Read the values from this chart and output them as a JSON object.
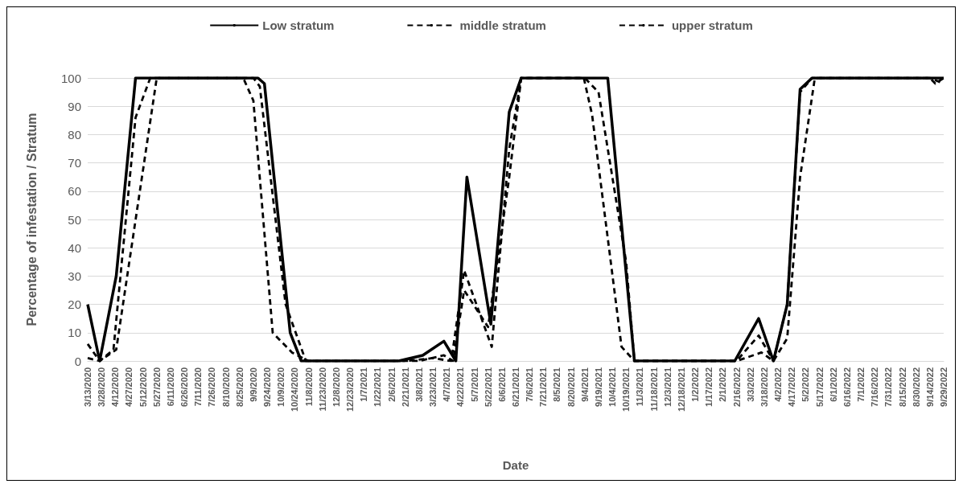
{
  "chart_data": {
    "type": "line",
    "xlabel": "Date",
    "ylabel": "Percentage of infestation / Stratum",
    "legend": "top",
    "grid": "y",
    "marker": "none",
    "ylim": [
      0,
      100
    ],
    "yticks": [
      0,
      10,
      20,
      30,
      40,
      50,
      60,
      70,
      80,
      90,
      100
    ],
    "xlim": [
      "2020-03-13",
      "2022-09-29"
    ],
    "xticks": [
      {
        "value": "2020-03-13",
        "label": "3/13/2020"
      },
      {
        "value": "2020-03-28",
        "label": "3/28/2020"
      },
      {
        "value": "2020-04-12",
        "label": "4/12/2020"
      },
      {
        "value": "2020-04-27",
        "label": "4/27/2020"
      },
      {
        "value": "2020-05-12",
        "label": "5/12/2020"
      },
      {
        "value": "2020-05-27",
        "label": "5/27/2020"
      },
      {
        "value": "2020-06-11",
        "label": "6/11/2020"
      },
      {
        "value": "2020-06-26",
        "label": "6/26/2020"
      },
      {
        "value": "2020-07-11",
        "label": "7/11/2020"
      },
      {
        "value": "2020-07-26",
        "label": "7/26/2020"
      },
      {
        "value": "2020-08-10",
        "label": "8/10/2020"
      },
      {
        "value": "2020-08-25",
        "label": "8/25/2020"
      },
      {
        "value": "2020-09-09",
        "label": "9/9/2020"
      },
      {
        "value": "2020-09-24",
        "label": "9/24/2020"
      },
      {
        "value": "2020-10-09",
        "label": "10/9/2020"
      },
      {
        "value": "2020-10-24",
        "label": "10/24/2020"
      },
      {
        "value": "2020-11-08",
        "label": "11/8/2020"
      },
      {
        "value": "2020-11-23",
        "label": "11/23/2020"
      },
      {
        "value": "2020-12-08",
        "label": "12/8/2020"
      },
      {
        "value": "2020-12-23",
        "label": "12/23/2020"
      },
      {
        "value": "2021-01-07",
        "label": "1/7/2021"
      },
      {
        "value": "2021-01-22",
        "label": "1/22/2021"
      },
      {
        "value": "2021-02-06",
        "label": "2/6/2021"
      },
      {
        "value": "2021-02-21",
        "label": "2/21/2021"
      },
      {
        "value": "2021-03-08",
        "label": "3/8/2021"
      },
      {
        "value": "2021-03-23",
        "label": "3/23/2021"
      },
      {
        "value": "2021-04-07",
        "label": "4/7/2021"
      },
      {
        "value": "2021-04-22",
        "label": "4/22/2021"
      },
      {
        "value": "2021-05-07",
        "label": "5/7/2021"
      },
      {
        "value": "2021-05-22",
        "label": "5/22/2021"
      },
      {
        "value": "2021-06-06",
        "label": "6/6/2021"
      },
      {
        "value": "2021-06-21",
        "label": "6/21/2021"
      },
      {
        "value": "2021-07-06",
        "label": "7/6/2021"
      },
      {
        "value": "2021-07-21",
        "label": "7/21/2021"
      },
      {
        "value": "2021-08-05",
        "label": "8/5/2021"
      },
      {
        "value": "2021-08-20",
        "label": "8/20/2021"
      },
      {
        "value": "2021-09-04",
        "label": "9/4/2021"
      },
      {
        "value": "2021-09-19",
        "label": "9/19/2021"
      },
      {
        "value": "2021-10-04",
        "label": "10/4/2021"
      },
      {
        "value": "2021-10-19",
        "label": "10/19/2021"
      },
      {
        "value": "2021-11-03",
        "label": "11/3/2021"
      },
      {
        "value": "2021-11-18",
        "label": "11/18/2021"
      },
      {
        "value": "2021-12-03",
        "label": "12/3/2021"
      },
      {
        "value": "2021-12-18",
        "label": "12/18/2021"
      },
      {
        "value": "2022-01-02",
        "label": "1/2/2022"
      },
      {
        "value": "2022-01-17",
        "label": "1/17/2022"
      },
      {
        "value": "2022-02-01",
        "label": "2/1/2022"
      },
      {
        "value": "2022-02-16",
        "label": "2/16/2022"
      },
      {
        "value": "2022-03-03",
        "label": "3/3/2022"
      },
      {
        "value": "2022-03-18",
        "label": "3/18/2022"
      },
      {
        "value": "2022-04-02",
        "label": "4/2/2022"
      },
      {
        "value": "2022-04-17",
        "label": "4/17/2022"
      },
      {
        "value": "2022-05-02",
        "label": "5/2/2022"
      },
      {
        "value": "2022-05-17",
        "label": "5/17/2022"
      },
      {
        "value": "2022-06-01",
        "label": "6/1/2022"
      },
      {
        "value": "2022-06-16",
        "label": "6/16/2022"
      },
      {
        "value": "2022-07-01",
        "label": "7/1/2022"
      },
      {
        "value": "2022-07-16",
        "label": "7/16/2022"
      },
      {
        "value": "2022-07-31",
        "label": "7/31/2022"
      },
      {
        "value": "2022-08-15",
        "label": "8/15/2022"
      },
      {
        "value": "2022-08-30",
        "label": "8/30/2022"
      },
      {
        "value": "2022-09-14",
        "label": "9/14/2022"
      },
      {
        "value": "2022-09-29",
        "label": "9/29/2022"
      }
    ],
    "series": [
      {
        "name": "Low stratum",
        "color": "#000000",
        "line_style": "solid",
        "x": [
          "2020-03-13",
          "2020-03-26",
          "2020-04-13",
          "2020-05-04",
          "2020-09-14",
          "2020-09-21",
          "2020-10-19",
          "2020-10-31",
          "2021-02-14",
          "2021-03-12",
          "2021-04-04",
          "2021-04-17",
          "2021-04-29",
          "2021-05-25",
          "2021-06-14",
          "2021-06-27",
          "2021-09-29",
          "2021-10-28",
          "2022-02-14",
          "2022-03-12",
          "2022-03-28",
          "2022-04-12",
          "2022-04-26",
          "2022-05-09",
          "2022-09-29"
        ],
        "values": [
          20,
          0,
          30,
          100,
          100,
          98,
          10,
          0,
          0,
          2,
          7,
          0,
          65,
          13,
          88,
          100,
          100,
          0,
          0,
          15,
          0,
          20,
          96,
          100,
          100
        ]
      },
      {
        "name": "middle stratum",
        "color": "#000000",
        "line_style": "dashed",
        "x": [
          "2020-03-13",
          "2020-03-26",
          "2020-04-10",
          "2020-05-04",
          "2020-05-20",
          "2020-09-09",
          "2020-09-16",
          "2020-10-14",
          "2020-11-05",
          "2021-02-21",
          "2021-03-23",
          "2021-04-12",
          "2021-04-26",
          "2021-05-26",
          "2021-06-14",
          "2021-06-27",
          "2021-09-04",
          "2021-09-19",
          "2021-10-19",
          "2021-10-28",
          "2022-02-16",
          "2022-03-12",
          "2022-03-28",
          "2022-04-12",
          "2022-04-26",
          "2022-05-09",
          "2022-09-14",
          "2022-09-29"
        ],
        "values": [
          6,
          0,
          4,
          86,
          100,
          100,
          97,
          20,
          0,
          0,
          1,
          0,
          32,
          5,
          75,
          100,
          100,
          95,
          35,
          0,
          0,
          9,
          0,
          20,
          95,
          100,
          100,
          98
        ]
      },
      {
        "name": "upper stratum",
        "color": "#000000",
        "line_style": "dashed",
        "x": [
          "2020-03-13",
          "2020-03-26",
          "2020-04-13",
          "2020-05-27",
          "2020-08-29",
          "2020-09-09",
          "2020-09-30",
          "2020-10-21",
          "2020-11-08",
          "2021-03-08",
          "2021-04-04",
          "2021-04-14",
          "2021-04-26",
          "2021-05-22",
          "2021-06-14",
          "2021-06-27",
          "2021-09-03",
          "2021-09-12",
          "2021-10-14",
          "2021-10-28",
          "2022-02-16",
          "2022-03-15",
          "2022-03-28",
          "2022-04-12",
          "2022-04-26",
          "2022-05-12",
          "2022-09-14",
          "2022-09-20",
          "2022-09-29"
        ],
        "values": [
          1,
          0,
          4,
          100,
          100,
          92,
          10,
          3,
          0,
          0,
          2,
          0,
          25,
          12,
          65,
          100,
          100,
          87,
          5,
          0,
          0,
          3,
          0,
          8,
          65,
          100,
          100,
          98,
          100
        ]
      }
    ]
  }
}
